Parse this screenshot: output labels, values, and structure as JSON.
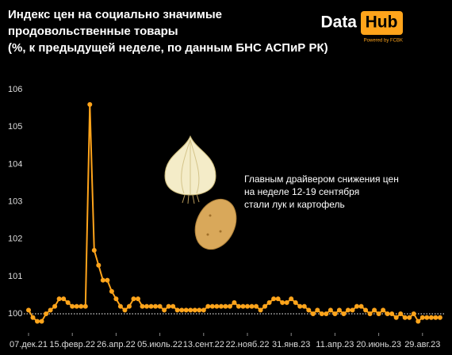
{
  "chart_data": {
    "type": "line",
    "title": [
      "Индекс цен на социально значимые",
      "продовольственные товары",
      "(%, к предыдущей неделе, по данным БНС АСПиР РК)"
    ],
    "logo": {
      "left": "Data",
      "right": "Hub",
      "sub": "Powered by FCBK"
    },
    "annotation": [
      "Главным драйвером снижения цен",
      "на неделе 12-19 сентября",
      "стали лук и картофель"
    ],
    "categories": [
      "07.дек.21",
      null,
      null,
      null,
      null,
      null,
      null,
      null,
      null,
      null,
      "15.февр.22",
      null,
      null,
      null,
      null,
      null,
      null,
      null,
      null,
      null,
      "26.апр.22",
      null,
      null,
      null,
      null,
      null,
      null,
      null,
      null,
      null,
      "05.июль.22",
      null,
      null,
      null,
      null,
      null,
      null,
      null,
      null,
      null,
      "13.сент.22",
      null,
      null,
      null,
      null,
      null,
      null,
      null,
      null,
      null,
      "22.нояб.22",
      null,
      null,
      null,
      null,
      null,
      null,
      null,
      null,
      null,
      "31.янв.23",
      null,
      null,
      null,
      null,
      null,
      null,
      null,
      null,
      null,
      "11.апр.23",
      null,
      null,
      null,
      null,
      null,
      null,
      null,
      null,
      null,
      "20.июнь.23",
      null,
      null,
      null,
      null,
      null,
      null,
      null,
      null,
      null,
      "29.авг.23",
      null,
      null,
      null,
      null
    ],
    "values": [
      100.1,
      99.9,
      99.8,
      99.8,
      100.0,
      100.1,
      100.2,
      100.4,
      100.4,
      100.3,
      100.2,
      100.2,
      100.2,
      100.2,
      105.6,
      101.7,
      101.3,
      100.9,
      100.9,
      100.6,
      100.4,
      100.2,
      100.1,
      100.2,
      100.4,
      100.4,
      100.2,
      100.2,
      100.2,
      100.2,
      100.2,
      100.1,
      100.2,
      100.2,
      100.1,
      100.1,
      100.1,
      100.1,
      100.1,
      100.1,
      100.1,
      100.2,
      100.2,
      100.2,
      100.2,
      100.2,
      100.2,
      100.3,
      100.2,
      100.2,
      100.2,
      100.2,
      100.2,
      100.1,
      100.2,
      100.3,
      100.4,
      100.4,
      100.3,
      100.3,
      100.4,
      100.3,
      100.2,
      100.2,
      100.1,
      100.0,
      100.1,
      100.0,
      100.0,
      100.1,
      100.0,
      100.1,
      100.0,
      100.1,
      100.1,
      100.2,
      100.2,
      100.1,
      100.0,
      100.1,
      100.0,
      100.1,
      100.0,
      100.0,
      99.9,
      100.0,
      99.9,
      99.9,
      100.0,
      99.8,
      99.9,
      99.9,
      99.9,
      99.9,
      99.9
    ],
    "color": "#ffa41b",
    "reference_line": 100,
    "ylim": [
      99.7,
      106.1
    ],
    "yticks": [
      100,
      101,
      102,
      103,
      104,
      105,
      106
    ]
  }
}
